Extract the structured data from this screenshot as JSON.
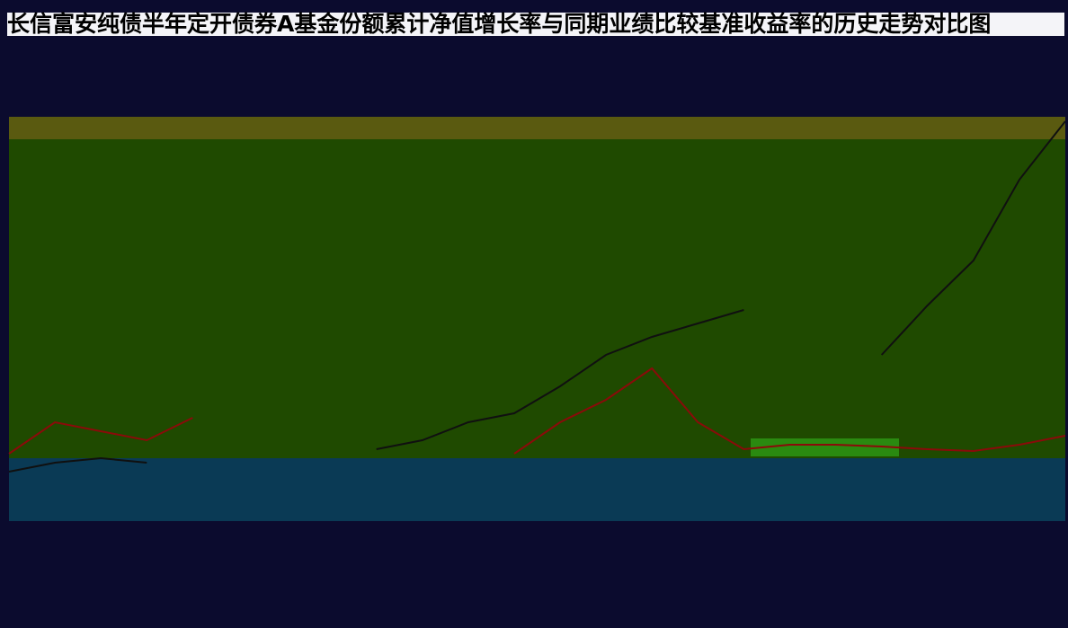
{
  "chart_data": {
    "type": "line",
    "title": "长信富安纯债半年定开债券A基金份额累计净值增长率与同期业绩比较基准收益率的历史走势对比图",
    "categories": [
      null,
      null,
      null,
      null,
      null,
      null,
      null,
      null,
      null,
      null,
      null,
      null,
      null,
      null,
      null,
      null,
      null,
      null,
      null,
      null,
      null,
      null,
      null,
      null
    ],
    "series": [
      {
        "color": "#8b0a0a",
        "values": [
          7.5,
          11,
          10,
          9,
          11.5,
          null,
          null,
          null,
          null,
          null,
          null,
          7.5,
          11,
          13.5,
          17,
          11,
          8,
          8.5,
          8.5,
          8.3,
          8,
          7.8,
          8.5,
          9.5
        ]
      },
      {
        "color": "#101010",
        "values": [
          5.5,
          6.5,
          7,
          6.5,
          null,
          null,
          null,
          null,
          8,
          9,
          11,
          12,
          15,
          18.5,
          20.5,
          22,
          23.5,
          null,
          null,
          18.5,
          24,
          29,
          38,
          44.5
        ]
      }
    ],
    "ylim": [
      0,
      45
    ]
  }
}
